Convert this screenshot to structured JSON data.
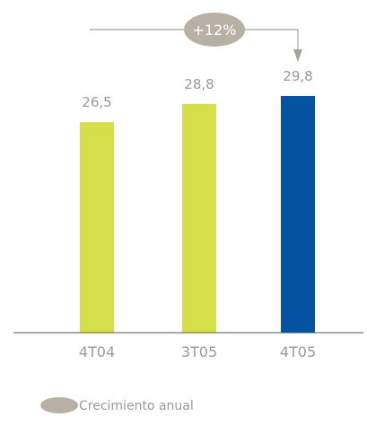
{
  "chart_data": {
    "type": "bar",
    "categories": [
      "4T04",
      "3T05",
      "4T05"
    ],
    "values": [
      26.5,
      28.8,
      29.8
    ],
    "value_labels": [
      "26,5",
      "28,8",
      "29,8"
    ],
    "bar_colors": [
      "#d4df4a",
      "#d4df4a",
      "#0453a3"
    ],
    "annotation": {
      "text": "+12%",
      "from_category": "4T04",
      "to_category": "4T05"
    },
    "legend": [
      {
        "label": "Crecimiento anual",
        "marker": "ellipse",
        "color": "#b7b0a4"
      }
    ],
    "grid": false,
    "legend_position": "bottom-left"
  }
}
